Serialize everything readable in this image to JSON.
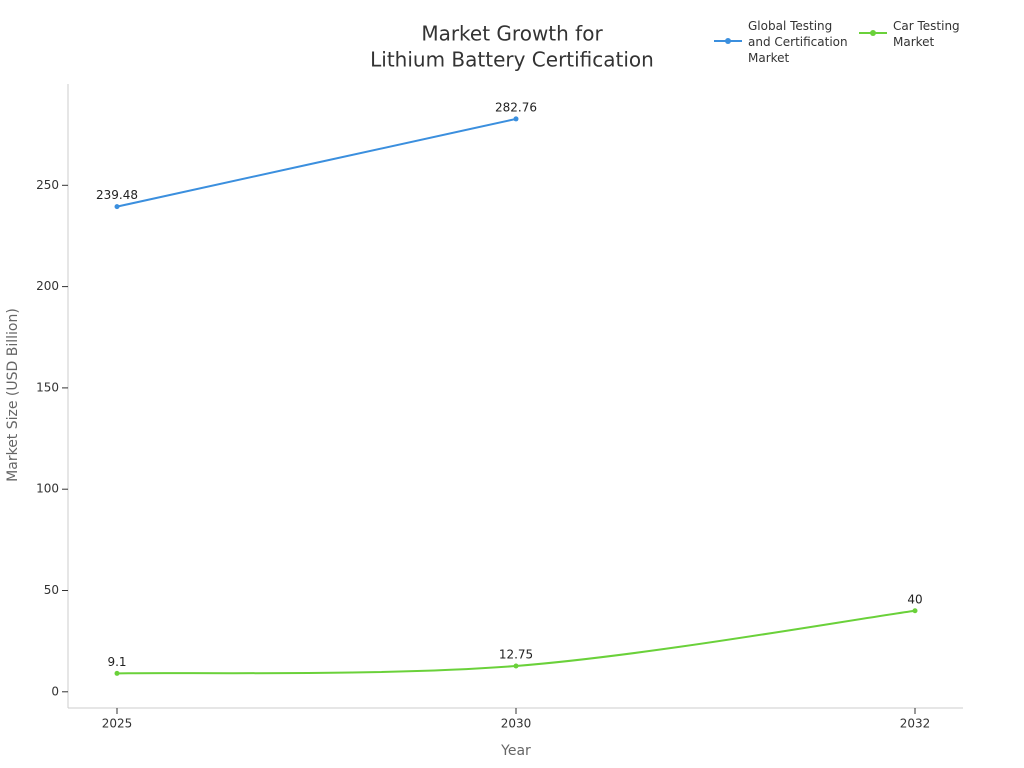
{
  "chart_data": {
    "type": "line",
    "title": [
      "Market Growth for",
      "Lithium Battery Certification"
    ],
    "x_label": "Year",
    "y_label": "Market Size (USD Billion)",
    "categories": [
      "2025",
      "2030",
      "2032"
    ],
    "series": [
      {
        "name": "Global Testing and Certification Market",
        "color": "#3b8fde",
        "values": [
          239.48,
          282.76,
          null
        ]
      },
      {
        "name": "Car Testing Market",
        "color": "#6ad13a",
        "values": [
          9.1,
          12.75,
          40
        ]
      }
    ],
    "ylim": [
      -8,
      300
    ],
    "yticks": [
      0,
      50,
      100,
      150,
      200,
      250
    ],
    "grid": false,
    "legend": "top-right"
  }
}
